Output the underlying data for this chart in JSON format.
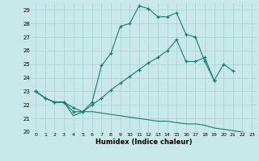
{
  "xlabel": "Humidex (Indice chaleur)",
  "bg_color": "#c8e8ea",
  "grid_color": "#a8d0d3",
  "line_color": "#1a7a6e",
  "ylim": [
    20,
    29.5
  ],
  "xlim": [
    -0.5,
    23.5
  ],
  "yticks": [
    20,
    21,
    22,
    23,
    24,
    25,
    26,
    27,
    28,
    29
  ],
  "xticks": [
    0,
    1,
    2,
    3,
    4,
    5,
    6,
    7,
    8,
    9,
    10,
    11,
    12,
    13,
    14,
    15,
    16,
    17,
    18,
    19,
    20,
    21,
    22,
    23
  ],
  "line1_x": [
    0,
    1,
    2,
    3,
    4,
    5,
    6,
    7,
    8,
    9,
    10,
    11,
    12,
    13,
    14,
    15,
    16,
    17,
    18,
    19,
    20,
    21
  ],
  "line1_y": [
    23.0,
    22.5,
    22.2,
    22.2,
    21.8,
    21.5,
    22.2,
    24.9,
    25.8,
    27.8,
    28.0,
    29.3,
    29.1,
    28.5,
    28.5,
    28.8,
    27.2,
    27.0,
    25.2,
    23.8,
    25.0,
    24.5
  ],
  "line2_x": [
    0,
    1,
    2,
    3,
    4,
    5,
    6,
    7,
    8,
    9,
    10,
    11,
    12,
    13,
    14,
    15,
    16,
    17,
    18,
    19
  ],
  "line2_y": [
    23.0,
    22.5,
    22.2,
    22.2,
    21.5,
    21.5,
    22.0,
    22.5,
    23.1,
    23.6,
    24.1,
    24.6,
    25.1,
    25.5,
    26.0,
    26.8,
    25.2,
    25.2,
    25.5,
    23.8
  ],
  "line3_x": [
    0,
    1,
    2,
    3,
    4,
    5,
    6,
    7,
    8,
    9,
    10,
    11,
    12,
    13,
    14,
    15,
    16,
    17,
    18,
    19,
    20,
    21,
    22,
    23
  ],
  "line3_y": [
    23.0,
    22.5,
    22.2,
    22.2,
    21.2,
    21.5,
    21.5,
    21.4,
    21.3,
    21.2,
    21.1,
    21.0,
    20.9,
    20.8,
    20.8,
    20.7,
    20.6,
    20.6,
    20.5,
    20.3,
    20.2,
    20.1,
    20.0,
    19.9
  ]
}
